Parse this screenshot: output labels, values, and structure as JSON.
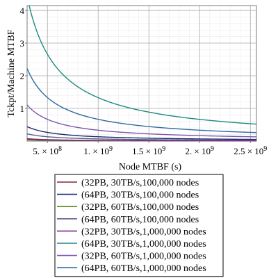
{
  "chart_data": {
    "type": "line",
    "title": "",
    "xlabel": "Node MTBF (s)",
    "ylabel": "Tckpt/Machine MTBF",
    "xlim": [
      300000000,
      2560000000
    ],
    "ylim": [
      0,
      4.15
    ],
    "grid": true,
    "legend_placement": "bottom",
    "x_ticks": [
      {
        "value": 500000000,
        "mantissa": "5.",
        "exponent": "8"
      },
      {
        "value": 1000000000,
        "mantissa": "1.",
        "exponent": "9"
      },
      {
        "value": 1500000000,
        "mantissa": "1.5",
        "exponent": "9"
      },
      {
        "value": 2000000000,
        "mantissa": "2.",
        "exponent": "9"
      },
      {
        "value": 2500000000,
        "mantissa": "2.5",
        "exponent": "9"
      }
    ],
    "y_ticks": [
      {
        "value": 1,
        "label": "1"
      },
      {
        "value": 2,
        "label": "2"
      },
      {
        "value": 3,
        "label": "3"
      },
      {
        "value": 4,
        "label": "4"
      }
    ],
    "series": [
      {
        "name": "(32PB, 30TB/s,100,000 nodes",
        "color": "#8b2330",
        "k": 22200000
      },
      {
        "name": "(64PB, 30TB/s,100,000 nodes",
        "color": "#1c2a6e",
        "k": 133000000
      },
      {
        "name": "(32PB, 60TB/s,100,000 nodes",
        "color": "#5d8a1e",
        "k": 11100000
      },
      {
        "name": "(64PB, 60TB/s,100,000 nodes",
        "color": "#5a5f8a",
        "k": 66700000
      },
      {
        "name": "(32PB, 30TB/s,1,000,000 nodes",
        "color": "#7b2a8a",
        "k": 17800000
      },
      {
        "name": "(64PB, 30TB/s,1,000,000 nodes",
        "color": "#1d8a7e",
        "k": 1330000000
      },
      {
        "name": "(32PB, 60TB/s,1,000,000 nodes",
        "color": "#7d55b0",
        "k": 333000000
      },
      {
        "name": "(64PB, 60TB/s,1,000,000 nodes",
        "color": "#2f6aa0",
        "k": 667000000
      }
    ]
  }
}
